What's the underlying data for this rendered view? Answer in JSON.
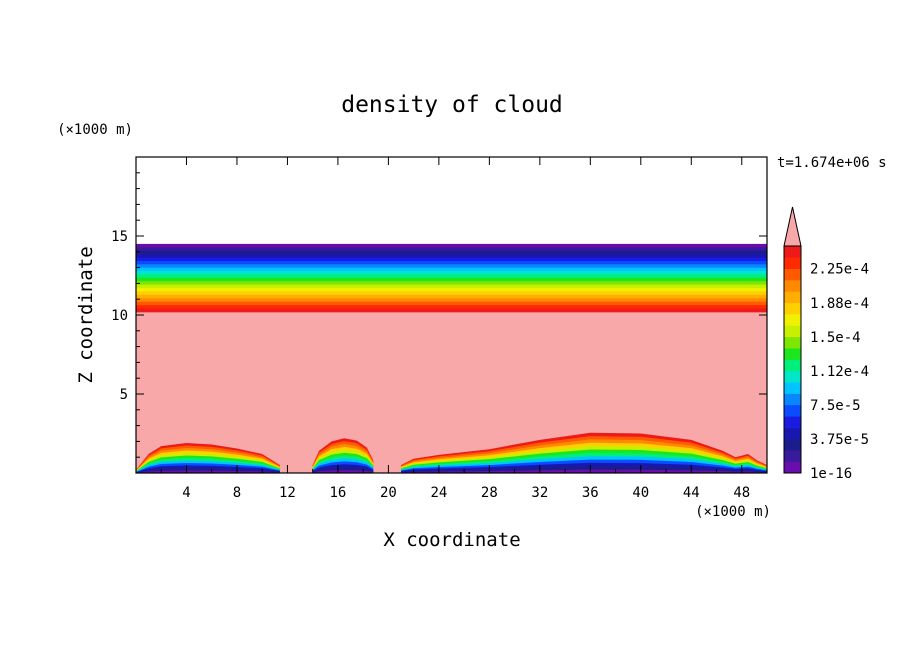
{
  "chart_data": {
    "type": "heatmap",
    "title": "density of cloud",
    "xlabel": "X coordinate",
    "ylabel": "Z coordinate",
    "x_unit": "(×1000 m)",
    "y_unit": "(×1000 m)",
    "time_label": "t=1.674e+06 s",
    "xlim": [
      0,
      50
    ],
    "ylim": [
      0,
      20
    ],
    "x_ticks": [
      4,
      8,
      12,
      16,
      20,
      24,
      28,
      32,
      36,
      40,
      44,
      48
    ],
    "x_tick_labels": [
      "4",
      "8",
      "12",
      "16",
      "20",
      "24",
      "28",
      "32",
      "36",
      "40",
      "44",
      "48"
    ],
    "y_ticks": [
      5,
      10,
      15
    ],
    "y_tick_labels": [
      "5",
      "10",
      "15"
    ],
    "colorbar": {
      "labels": [
        "1e-16",
        "3.75e-5",
        "7.5e-5",
        "1.12e-4",
        "1.5e-4",
        "1.88e-4",
        "2.25e-4"
      ],
      "colors": [
        "#6a0dad",
        "#3a1a9c",
        "#1c1c8c",
        "#1818b0",
        "#1a1ae0",
        "#0a4cff",
        "#0a86ff",
        "#00c4ff",
        "#00e6c8",
        "#00ee7a",
        "#1ee61e",
        "#7ee600",
        "#c8ef00",
        "#f0f000",
        "#ffd000",
        "#ffae00",
        "#ff8a00",
        "#ff5a00",
        "#ff2a00",
        "#ee1a1a"
      ],
      "overflow_color": "#f8a8a8"
    },
    "upper_band": {
      "z_bottom": 10.2,
      "z_top": 14.5,
      "description_note": ""
    },
    "saturated_color": "#f8a8a8",
    "lower_clouds": [
      {
        "x": [
          0,
          1,
          2,
          4,
          6,
          8,
          10,
          11.4
        ],
        "top": [
          0.2,
          1.2,
          1.7,
          1.9,
          1.8,
          1.55,
          1.2,
          0.5
        ]
      },
      {
        "x": [
          14,
          14.5,
          15.5,
          16.5,
          17.5,
          18.3,
          18.8
        ],
        "top": [
          0.5,
          1.4,
          2.0,
          2.2,
          2.05,
          1.6,
          0.8
        ]
      },
      {
        "x": [
          21,
          22,
          24,
          28,
          32,
          36,
          40,
          44,
          46.5,
          47.5,
          48.5,
          49.2,
          50
        ],
        "top": [
          0.5,
          0.9,
          1.15,
          1.5,
          2.1,
          2.55,
          2.5,
          2.1,
          1.4,
          1.0,
          1.2,
          0.8,
          0.5
        ]
      }
    ]
  }
}
